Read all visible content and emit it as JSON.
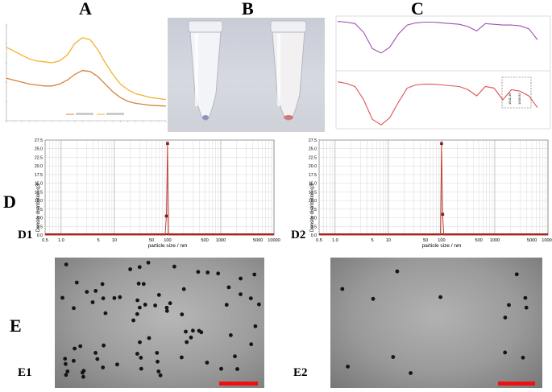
{
  "panels": {
    "A": "A",
    "B": "B",
    "C": "C",
    "D": "D",
    "D1": "D1",
    "D2": "D2",
    "E": "E",
    "E1": "E1",
    "E2": "E2"
  },
  "panel_c": {
    "peaks_bottom": [
      "1641.49",
      "1045.62"
    ]
  },
  "dls": {
    "ylabel": "Density distribution q3*",
    "xlabel": "particle size / nm",
    "y_ticks": [
      "0.0",
      "2.5",
      "5.0",
      "7.5",
      "10.0",
      "12.5",
      "15.0",
      "17.5",
      "20.0",
      "22.5",
      "25.0",
      "27.5"
    ],
    "x_ticks": [
      "0.5",
      "1.0",
      "5",
      "10",
      "50",
      "100",
      "500",
      "1000",
      "5000",
      "10000"
    ]
  },
  "colors": {
    "uv_upper": "#f2b32a",
    "uv_lower": "#d8823a",
    "ftir_upper": "#9c4fb0",
    "ftir_lower": "#e05050",
    "dls_line": "#c0392b",
    "scalebar": "#ee1111"
  },
  "chart_data": [
    {
      "type": "line",
      "panel": "A",
      "series": [
        {
          "values": [
            0.38,
            0.36,
            0.34,
            0.32,
            0.31,
            0.305,
            0.3,
            0.31,
            0.34,
            0.4,
            0.43,
            0.42,
            0.37,
            0.3,
            0.24,
            0.19,
            0.16,
            0.14,
            0.13,
            0.12,
            0.115,
            0.11
          ]
        },
        {
          "values": [
            0.22,
            0.21,
            0.2,
            0.19,
            0.185,
            0.18,
            0.18,
            0.19,
            0.21,
            0.24,
            0.26,
            0.255,
            0.23,
            0.19,
            0.15,
            0.12,
            0.1,
            0.09,
            0.085,
            0.08,
            0.078,
            0.076
          ]
        }
      ]
    },
    {
      "type": "line",
      "panel": "C",
      "series": [
        {
          "values": [
            95,
            94,
            92,
            80,
            58,
            52,
            60,
            78,
            90,
            93,
            94,
            94,
            93,
            92,
            91,
            88,
            82,
            92,
            91,
            90,
            90,
            89,
            85,
            70
          ]
        },
        {
          "values": [
            88,
            86,
            82,
            65,
            40,
            33,
            42,
            62,
            80,
            84,
            85,
            85,
            84,
            83,
            82,
            78,
            70,
            82,
            80,
            65,
            78,
            76,
            70,
            55
          ]
        }
      ]
    },
    {
      "type": "line",
      "panel": "D1",
      "x": [
        0.5,
        1,
        5,
        10,
        50,
        90,
        95,
        100,
        105,
        110,
        500,
        1000,
        5000,
        10000
      ],
      "y": [
        0,
        0,
        0,
        0,
        0,
        0,
        5.5,
        26.5,
        0,
        0,
        0,
        0,
        0,
        0
      ],
      "xlabel": "particle size / nm",
      "ylabel": "Density distribution q3*",
      "ylim": [
        0,
        27.5
      ],
      "xscale": "log"
    },
    {
      "type": "line",
      "panel": "D2",
      "x": [
        0.5,
        1,
        5,
        10,
        50,
        95,
        100,
        105,
        110,
        115,
        500,
        1000,
        5000,
        10000
      ],
      "y": [
        0,
        0,
        0,
        0,
        0,
        0,
        26.5,
        6.0,
        0,
        0,
        0,
        0,
        0,
        0
      ],
      "xlabel": "particle size / nm",
      "ylabel": "Density distribution q3*",
      "ylim": [
        0,
        27.5
      ],
      "xscale": "log"
    }
  ]
}
